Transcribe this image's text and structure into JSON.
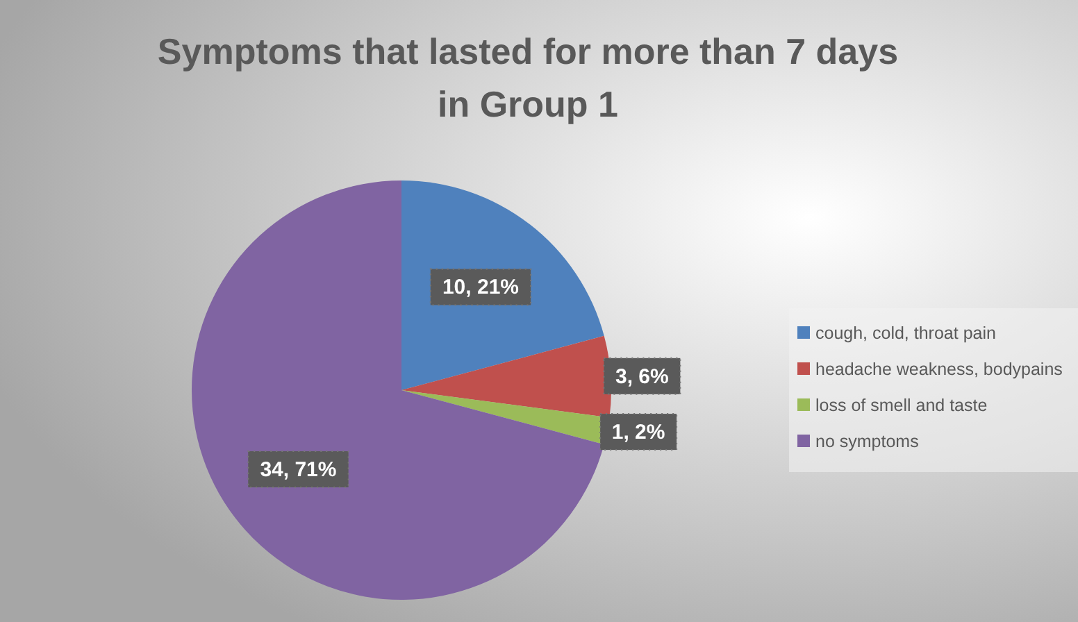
{
  "chart_data": {
    "type": "pie",
    "title": "Symptoms that lasted for more than 7 days in Group 1",
    "categories": [
      "cough, cold, throat pain",
      "headache weakness, bodypains",
      "loss of smell and taste",
      "no symptoms"
    ],
    "values": [
      10,
      3,
      1,
      34
    ],
    "colors": [
      "#4f81bd",
      "#c0504d",
      "#9bbb59",
      "#8064a2"
    ],
    "value_labels": [
      "10, 21%",
      "3, 6%",
      "1, 2%",
      "34, 71%"
    ],
    "legend": "right"
  }
}
